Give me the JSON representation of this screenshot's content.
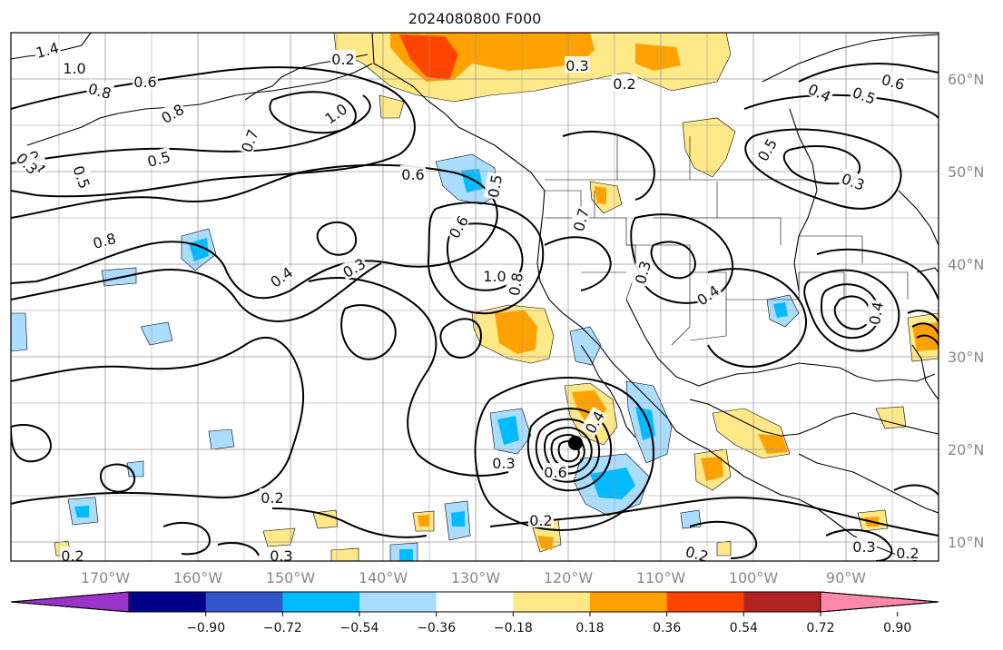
{
  "title": "2024080800 F000",
  "map": {
    "lon_labels": [
      "170°W",
      "160°W",
      "150°W",
      "140°W",
      "130°W",
      "120°W",
      "110°W",
      "100°W",
      "90°W"
    ],
    "lat_labels": [
      "60°N",
      "50°N",
      "40°N",
      "30°N",
      "20°N",
      "10°N"
    ],
    "contour_labels": [
      "1.4",
      "1.0",
      "0.8",
      "0.6",
      "0.2",
      "0.3",
      "0.2",
      "0.4",
      "0.5",
      "0.6",
      "0.8",
      "0.7",
      "1.0",
      "0.5",
      "0.4",
      "0.5",
      "0.3",
      "0.6",
      "0.5",
      "0.8",
      "0.4",
      "0.3",
      "0.6",
      "1.0",
      "0.8",
      "0.7",
      "0.3",
      "0.4",
      "0.4",
      "0.5",
      "0.3",
      "0.4",
      "0.3",
      "0.6",
      "0.2",
      "0.2",
      "0.2",
      "0.3",
      "0.2",
      "0.3",
      "0.2"
    ],
    "colors": {
      "neg_shades": [
        "#9933cc",
        "#000088",
        "#3355cc",
        "#00bbff",
        "#aaddff"
      ],
      "pos_shades": [
        "#ffe888",
        "#ffa200",
        "#ff4400",
        "#b22222",
        "#ff88aa"
      ],
      "land_lines": "#000000",
      "grid": "#999999"
    }
  },
  "colorbar": {
    "tick_labels": [
      "−0.90",
      "−0.72",
      "−0.54",
      "−0.36",
      "−0.18",
      "0.18",
      "0.36",
      "0.54",
      "0.72",
      "0.90"
    ],
    "colors": [
      "#9933cc",
      "#000088",
      "#3355cc",
      "#00bbff",
      "#aaddff",
      "#ffffff",
      "#ffe888",
      "#ffa200",
      "#ff4400",
      "#b22222",
      "#ff88aa"
    ]
  }
}
